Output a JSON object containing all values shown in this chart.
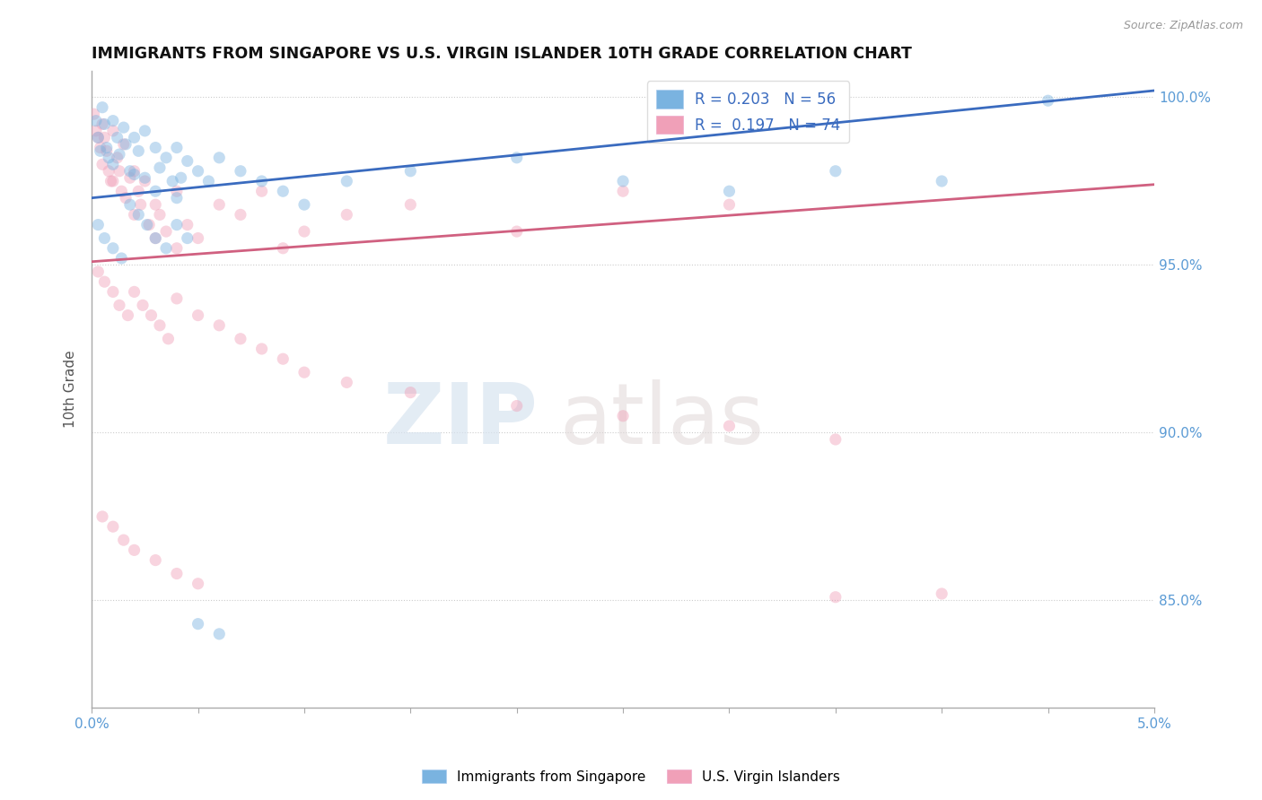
{
  "title": "IMMIGRANTS FROM SINGAPORE VS U.S. VIRGIN ISLANDER 10TH GRADE CORRELATION CHART",
  "source_text": "Source: ZipAtlas.com",
  "ylabel": "10th Grade",
  "xlim": [
    0.0,
    0.05
  ],
  "ylim": [
    0.818,
    1.008
  ],
  "right_yticks": [
    0.85,
    0.9,
    0.95,
    1.0
  ],
  "right_yticklabels": [
    "85.0%",
    "90.0%",
    "95.0%",
    "100.0%"
  ],
  "xticks": [
    0.0,
    0.005,
    0.01,
    0.015,
    0.02,
    0.025,
    0.03,
    0.035,
    0.04,
    0.045,
    0.05
  ],
  "xticklabels": [
    "0.0%",
    "",
    "",
    "",
    "",
    "",
    "",
    "",
    "",
    "",
    "5.0%"
  ],
  "legend_label_blue": "R = 0.203   N = 56",
  "legend_label_pink": "R =  0.197   N = 74",
  "legend_label_blue_bottom": "Immigrants from Singapore",
  "legend_label_pink_bottom": "U.S. Virgin Islanders",
  "blue_scatter_x": [
    0.0002,
    0.0003,
    0.0004,
    0.0005,
    0.0006,
    0.0007,
    0.0008,
    0.001,
    0.001,
    0.0012,
    0.0013,
    0.0015,
    0.0016,
    0.0018,
    0.002,
    0.002,
    0.0022,
    0.0025,
    0.0025,
    0.003,
    0.003,
    0.0032,
    0.0035,
    0.0038,
    0.004,
    0.004,
    0.0042,
    0.0045,
    0.005,
    0.0055,
    0.006,
    0.007,
    0.008,
    0.009,
    0.01,
    0.012,
    0.015,
    0.02,
    0.025,
    0.03,
    0.035,
    0.04,
    0.045,
    0.0003,
    0.0006,
    0.001,
    0.0014,
    0.0018,
    0.0022,
    0.0026,
    0.003,
    0.0035,
    0.004,
    0.0045,
    0.005,
    0.006
  ],
  "blue_scatter_y": [
    0.993,
    0.988,
    0.984,
    0.997,
    0.992,
    0.985,
    0.982,
    0.993,
    0.98,
    0.988,
    0.983,
    0.991,
    0.986,
    0.978,
    0.988,
    0.977,
    0.984,
    0.99,
    0.976,
    0.985,
    0.972,
    0.979,
    0.982,
    0.975,
    0.985,
    0.97,
    0.976,
    0.981,
    0.978,
    0.975,
    0.982,
    0.978,
    0.975,
    0.972,
    0.968,
    0.975,
    0.978,
    0.982,
    0.975,
    0.972,
    0.978,
    0.975,
    0.999,
    0.962,
    0.958,
    0.955,
    0.952,
    0.968,
    0.965,
    0.962,
    0.958,
    0.955,
    0.962,
    0.958,
    0.843,
    0.84
  ],
  "pink_scatter_x": [
    0.0001,
    0.0002,
    0.0003,
    0.0004,
    0.0005,
    0.0005,
    0.0006,
    0.0007,
    0.0008,
    0.0009,
    0.001,
    0.001,
    0.0012,
    0.0013,
    0.0014,
    0.0015,
    0.0016,
    0.0018,
    0.002,
    0.002,
    0.0022,
    0.0023,
    0.0025,
    0.0027,
    0.003,
    0.003,
    0.0032,
    0.0035,
    0.004,
    0.004,
    0.0045,
    0.005,
    0.006,
    0.007,
    0.008,
    0.009,
    0.01,
    0.012,
    0.015,
    0.02,
    0.025,
    0.03,
    0.0003,
    0.0006,
    0.001,
    0.0013,
    0.0017,
    0.002,
    0.0024,
    0.0028,
    0.0032,
    0.0036,
    0.004,
    0.005,
    0.006,
    0.007,
    0.008,
    0.009,
    0.01,
    0.012,
    0.015,
    0.02,
    0.025,
    0.03,
    0.035,
    0.04,
    0.0005,
    0.001,
    0.0015,
    0.002,
    0.003,
    0.004,
    0.005,
    0.035
  ],
  "pink_scatter_y": [
    0.995,
    0.99,
    0.988,
    0.985,
    0.992,
    0.98,
    0.988,
    0.984,
    0.978,
    0.975,
    0.99,
    0.975,
    0.982,
    0.978,
    0.972,
    0.986,
    0.97,
    0.976,
    0.978,
    0.965,
    0.972,
    0.968,
    0.975,
    0.962,
    0.968,
    0.958,
    0.965,
    0.96,
    0.972,
    0.955,
    0.962,
    0.958,
    0.968,
    0.965,
    0.972,
    0.955,
    0.96,
    0.965,
    0.968,
    0.96,
    0.972,
    0.968,
    0.948,
    0.945,
    0.942,
    0.938,
    0.935,
    0.942,
    0.938,
    0.935,
    0.932,
    0.928,
    0.94,
    0.935,
    0.932,
    0.928,
    0.925,
    0.922,
    0.918,
    0.915,
    0.912,
    0.908,
    0.905,
    0.902,
    0.898,
    0.852,
    0.875,
    0.872,
    0.868,
    0.865,
    0.862,
    0.858,
    0.855,
    0.851
  ],
  "blue_line_x": [
    0.0,
    0.05
  ],
  "blue_line_y": [
    0.97,
    1.002
  ],
  "pink_line_x": [
    0.0,
    0.05
  ],
  "pink_line_y": [
    0.951,
    0.974
  ],
  "scatter_alpha": 0.45,
  "scatter_size": 90,
  "blue_color": "#7ab3e0",
  "pink_color": "#f0a0b8",
  "blue_line_color": "#3a6bbf",
  "pink_line_color": "#d06080",
  "watermark_zip": "ZIP",
  "watermark_atlas": "atlas",
  "background_color": "#ffffff",
  "grid_color": "#cccccc"
}
